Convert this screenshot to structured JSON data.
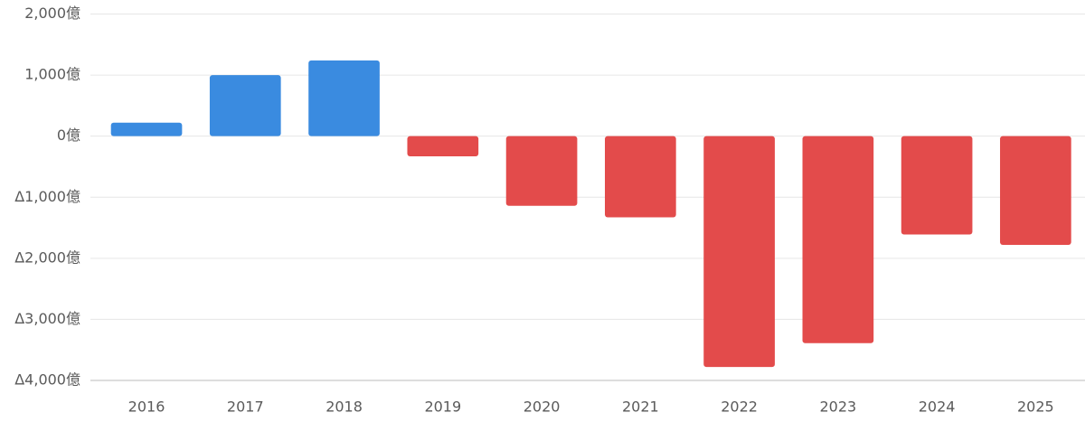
{
  "chart_data": {
    "type": "bar",
    "categories": [
      "2016",
      "2017",
      "2018",
      "2019",
      "2020",
      "2021",
      "2022",
      "2023",
      "2024",
      "2025"
    ],
    "values": [
      220,
      1000,
      1240,
      -330,
      -1140,
      -1330,
      -3780,
      -3390,
      -1610,
      -1780
    ],
    "colors": {
      "positive": "#3a8be0",
      "negative": "#e34b4b"
    },
    "ylim": [
      -4000,
      2000
    ],
    "yticks": [
      {
        "value": 2000,
        "label": "2,000億"
      },
      {
        "value": 1000,
        "label": "1,000億"
      },
      {
        "value": 0,
        "label": "0億"
      },
      {
        "value": -1000,
        "label": "Δ1,000億"
      },
      {
        "value": -2000,
        "label": "Δ2,000億"
      },
      {
        "value": -3000,
        "label": "Δ3,000億"
      },
      {
        "value": -4000,
        "label": "Δ4,000億"
      }
    ],
    "grid": true
  }
}
